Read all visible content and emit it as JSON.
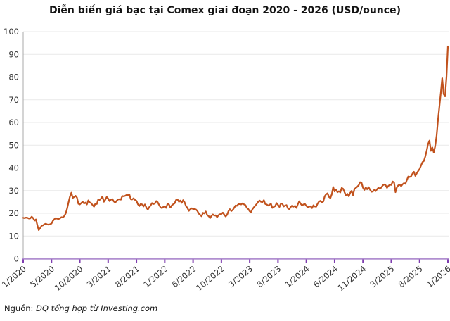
{
  "colors": {
    "line": "#c1521d",
    "baseline": "#b18fd0",
    "tick": "#7e3daf",
    "grid": "#e9e9e9",
    "axis": "#a8a8a8",
    "label_text": "#303030",
    "title_text": "#141414"
  },
  "source": {
    "label": "Nguồn:",
    "text": "ĐQ tổng hợp từ Investing.com"
  },
  "chart_data": {
    "type": "line",
    "title": "Diễn biến giá bạc tại Comex giai đoạn 2020 - 2026 (USD/ounce)",
    "xlabel": "",
    "ylabel": "",
    "ylim": [
      0,
      100
    ],
    "y_ticks": [
      0,
      10,
      20,
      30,
      40,
      50,
      60,
      70,
      80,
      90,
      100
    ],
    "grid": "horizontal",
    "legend": false,
    "x_tick_labels": [
      "1/2020",
      "5/2020",
      "10/2020",
      "3/2021",
      "8/2021",
      "1/2022",
      "6/2022",
      "10/2022",
      "3/2023",
      "8/2023",
      "1/2024",
      "6/2024",
      "11/2024",
      "3/2025",
      "8/2025",
      "1/2026"
    ],
    "x_tick_positions": [
      0,
      20,
      40,
      60,
      80,
      100,
      120,
      140,
      160,
      180,
      200,
      220,
      240,
      260,
      280,
      300
    ],
    "series": [
      {
        "values": [
          18.0,
          17.9,
          18.1,
          18.0,
          17.7,
          17.8,
          18.5,
          17.9,
          16.8,
          17.3,
          14.8,
          12.6,
          13.5,
          14.5,
          14.7,
          15.2,
          15.4,
          15.1,
          15.0,
          15.2,
          15.5,
          16.7,
          17.4,
          17.9,
          17.6,
          17.5,
          17.8,
          18.3,
          18.2,
          18.8,
          19.9,
          22.0,
          24.7,
          27.3,
          29.1,
          26.8,
          27.2,
          27.7,
          26.9,
          24.2,
          23.9,
          24.5,
          25.1,
          24.3,
          24.7,
          23.9,
          25.7,
          24.8,
          24.5,
          23.6,
          22.9,
          24.3,
          24.1,
          26.1,
          25.9,
          26.5,
          27.4,
          25.1,
          26.0,
          27.2,
          26.5,
          25.4,
          26.0,
          26.3,
          25.2,
          24.7,
          25.5,
          26.1,
          26.2,
          26.0,
          27.6,
          27.5,
          27.7,
          28.1,
          28.0,
          28.3,
          26.2,
          26.1,
          26.6,
          25.9,
          25.5,
          24.0,
          23.2,
          24.1,
          23.9,
          23.0,
          23.9,
          22.5,
          21.6,
          22.7,
          23.4,
          24.5,
          24.1,
          24.3,
          25.4,
          24.9,
          23.7,
          22.6,
          22.3,
          22.8,
          23.0,
          22.4,
          24.3,
          23.8,
          22.5,
          23.5,
          24.0,
          24.4,
          25.9,
          26.1,
          25.1,
          25.6,
          24.6,
          25.8,
          24.9,
          23.2,
          22.4,
          21.1,
          21.8,
          22.2,
          21.9,
          21.9,
          21.7,
          21.1,
          19.9,
          19.3,
          18.7,
          20.2,
          19.9,
          20.8,
          19.2,
          18.8,
          17.9,
          18.9,
          19.5,
          19.0,
          19.1,
          18.3,
          19.2,
          19.6,
          19.7,
          20.3,
          19.4,
          18.6,
          19.3,
          20.9,
          21.8,
          21.0,
          21.5,
          22.4,
          23.4,
          23.3,
          24.0,
          24.1,
          23.9,
          24.4,
          23.9,
          23.6,
          22.4,
          21.9,
          20.9,
          20.6,
          21.9,
          22.7,
          23.4,
          24.2,
          25.1,
          25.6,
          25.1,
          25.0,
          25.8,
          24.1,
          23.9,
          23.4,
          23.7,
          24.3,
          22.4,
          22.8,
          23.2,
          24.5,
          23.7,
          22.8,
          24.2,
          24.3,
          23.0,
          23.4,
          23.6,
          22.2,
          21.8,
          22.8,
          23.4,
          22.9,
          23.3,
          22.4,
          24.0,
          25.3,
          24.2,
          23.4,
          23.9,
          24.1,
          23.3,
          22.6,
          22.9,
          23.1,
          22.3,
          23.5,
          23.0,
          22.9,
          24.3,
          25.2,
          25.5,
          24.7,
          25.2,
          27.5,
          28.4,
          28.8,
          27.2,
          26.7,
          28.4,
          31.6,
          29.6,
          30.4,
          29.3,
          29.7,
          29.2,
          31.2,
          30.8,
          29.3,
          27.9,
          28.6,
          27.5,
          29.0,
          29.9,
          28.0,
          30.7,
          31.2,
          31.7,
          32.4,
          33.7,
          33.5,
          31.3,
          30.3,
          31.4,
          30.6,
          31.5,
          30.4,
          29.5,
          29.6,
          30.3,
          29.8,
          30.6,
          31.3,
          30.8,
          31.4,
          32.3,
          32.7,
          32.4,
          31.2,
          32.1,
          32.6,
          32.5,
          34.0,
          33.6,
          29.3,
          31.5,
          32.3,
          32.6,
          32.0,
          32.8,
          33.3,
          33.0,
          34.6,
          36.2,
          36.0,
          36.3,
          37.5,
          38.3,
          36.5,
          37.6,
          38.6,
          39.5,
          41.0,
          42.5,
          43.0,
          45.0,
          47.5,
          50.5,
          52.0,
          47.5,
          49.0,
          46.8,
          49.5,
          54.0,
          61.0,
          67.0,
          73.0,
          79.5,
          72.5,
          71.5,
          80.0,
          93.5
        ]
      }
    ]
  }
}
